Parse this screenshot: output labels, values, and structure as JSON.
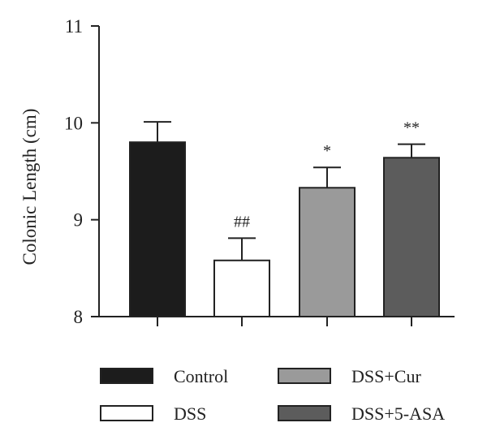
{
  "chart_data": {
    "type": "bar",
    "title": "",
    "xlabel": "",
    "ylabel": "Colonic Length (cm)",
    "ylim": [
      8,
      11
    ],
    "yticks": [
      "8",
      "9",
      "10",
      "11"
    ],
    "ytick_values": [
      8,
      9,
      10,
      11
    ],
    "grid": false,
    "legend_position": "bottom",
    "categories": [
      "Control",
      "DSS",
      "DSS+Cur",
      "DSS+5-ASA"
    ],
    "values": [
      9.8,
      8.58,
      9.33,
      9.64
    ],
    "errors": [
      0.21,
      0.23,
      0.21,
      0.14
    ],
    "significance": [
      "",
      "##",
      "*",
      "**"
    ],
    "colors": [
      "#1c1c1c",
      "#ffffff",
      "#9a9a9a",
      "#5c5c5c"
    ]
  }
}
